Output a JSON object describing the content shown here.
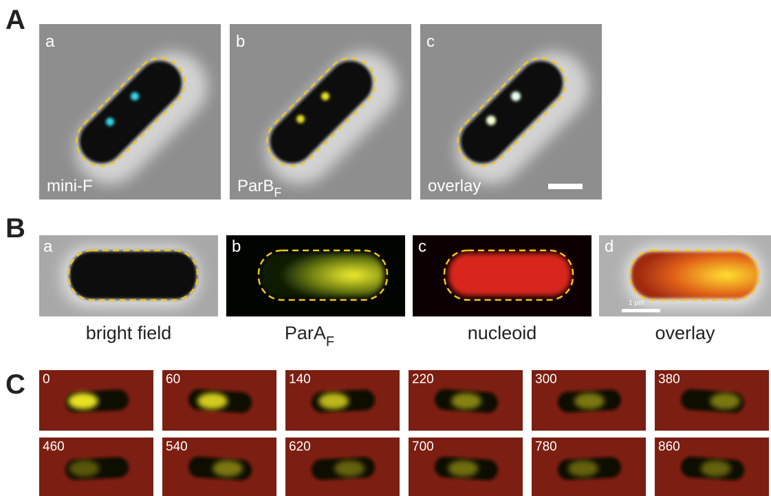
{
  "panels": [
    {
      "label": "A",
      "images": [
        {
          "letter": "a",
          "caption": "mini-F"
        },
        {
          "letter": "b",
          "caption": {
            "main": "ParB",
            "sub": "F"
          }
        },
        {
          "letter": "c",
          "caption": "overlay"
        }
      ]
    },
    {
      "label": "B",
      "images": [
        {
          "letter": "a",
          "caption": "bright field"
        },
        {
          "letter": "b",
          "caption": {
            "main": "ParA",
            "sub": "F"
          }
        },
        {
          "letter": "c",
          "caption": "nucleoid"
        },
        {
          "letter": "d",
          "caption": "overlay",
          "scale_bar": "1 µm"
        }
      ]
    },
    {
      "label": "C",
      "times": [
        "0",
        "60",
        "140",
        "220",
        "300",
        "380",
        "460",
        "540",
        "620",
        "700",
        "780",
        "860"
      ]
    }
  ]
}
